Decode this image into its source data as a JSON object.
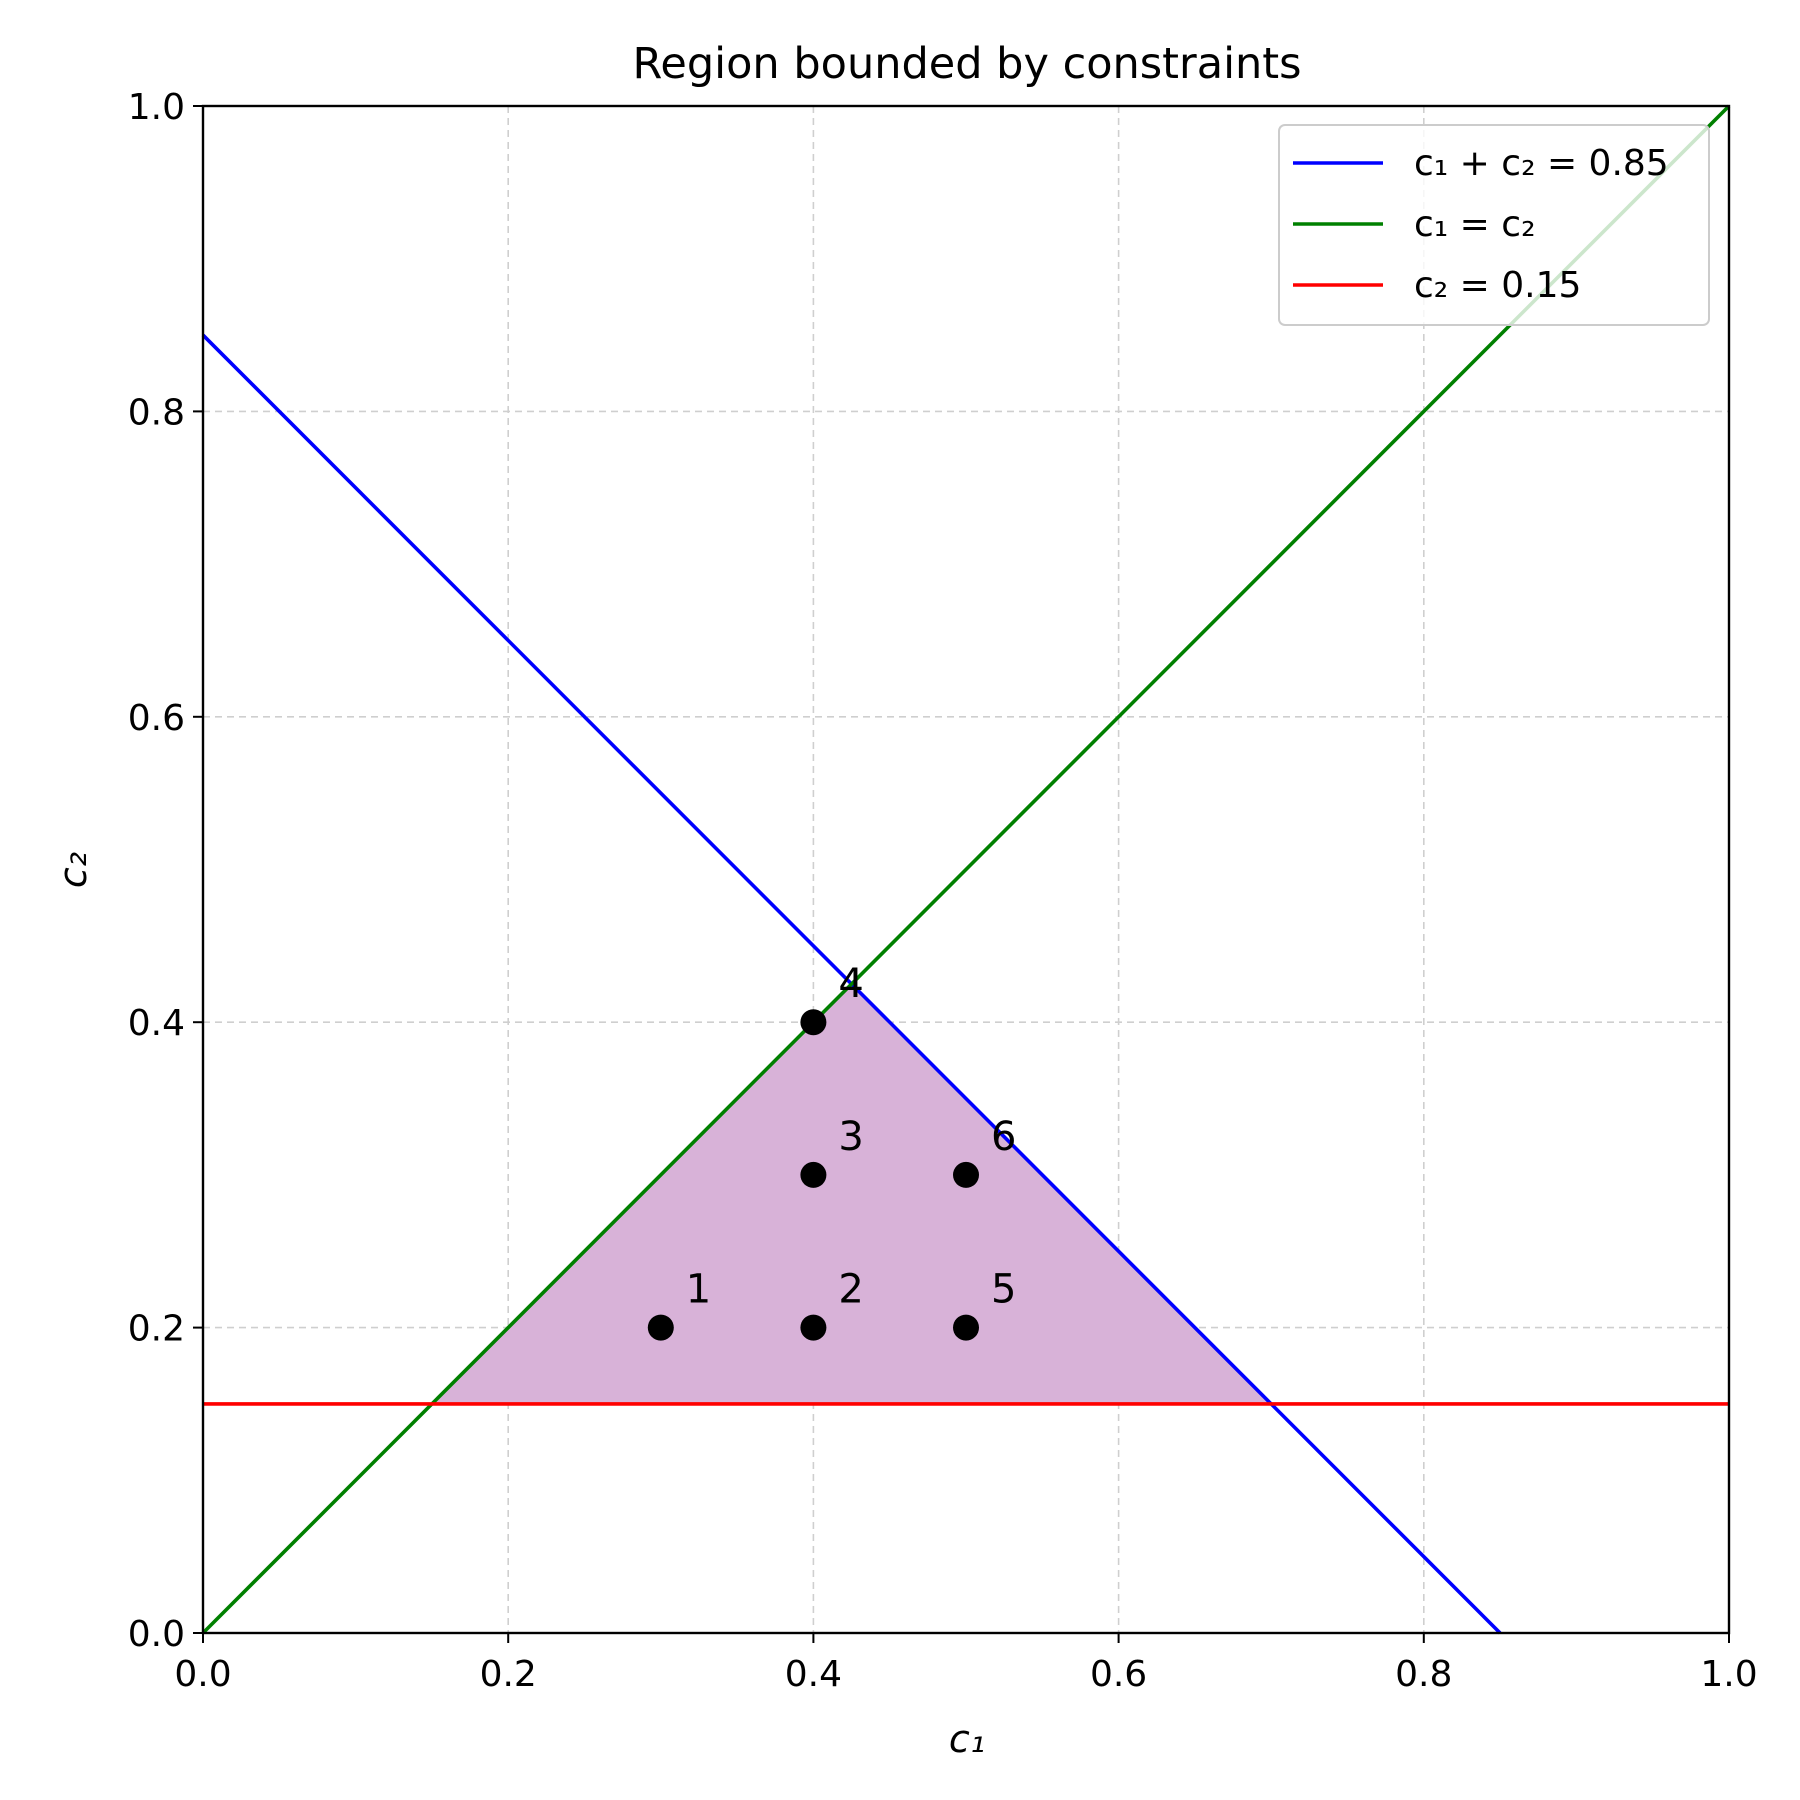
{
  "chart_data": {
    "type": "line",
    "title": "Region bounded by constraints",
    "xlabel": "c₁",
    "ylabel": "c₂",
    "xlim": [
      0.0,
      1.0
    ],
    "ylim": [
      0.0,
      1.0
    ],
    "x_ticks": [
      "0.0",
      "0.2",
      "0.4",
      "0.6",
      "0.8",
      "1.0"
    ],
    "y_ticks": [
      "0.0",
      "0.2",
      "0.4",
      "0.6",
      "0.8",
      "1.0"
    ],
    "grid": true,
    "legend_position": "top-right",
    "series": [
      {
        "name": "c₁ + c₂ = 0.85",
        "color": "#0000ff",
        "x": [
          0.0,
          0.85
        ],
        "y": [
          0.85,
          0.0
        ]
      },
      {
        "name": "c₁ = c₂",
        "color": "#008000",
        "x": [
          0.0,
          1.0
        ],
        "y": [
          0.0,
          1.0
        ]
      },
      {
        "name": "c₂ = 0.15",
        "color": "#ff0000",
        "x": [
          0.0,
          1.0
        ],
        "y": [
          0.15,
          0.15
        ]
      }
    ],
    "shaded_region": {
      "color": "#d8b2d8",
      "vertices": [
        [
          0.15,
          0.15
        ],
        [
          0.7,
          0.15
        ],
        [
          0.425,
          0.425
        ]
      ]
    },
    "points": [
      {
        "label": "1",
        "x": 0.3,
        "y": 0.2
      },
      {
        "label": "2",
        "x": 0.4,
        "y": 0.2
      },
      {
        "label": "3",
        "x": 0.4,
        "y": 0.3
      },
      {
        "label": "4",
        "x": 0.4,
        "y": 0.4
      },
      {
        "label": "5",
        "x": 0.5,
        "y": 0.2
      },
      {
        "label": "6",
        "x": 0.5,
        "y": 0.3
      }
    ]
  }
}
